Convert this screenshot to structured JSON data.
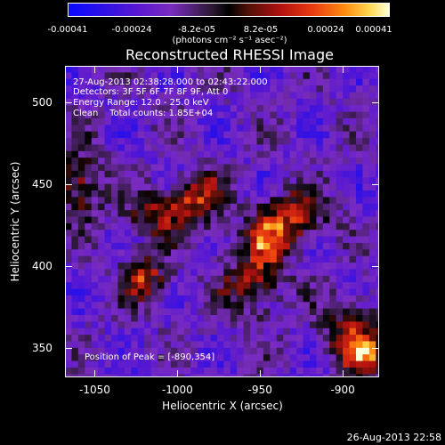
{
  "colorbar": {
    "tick_labels": [
      "-0.00041",
      "-0.00024",
      "-8.2e-05",
      "8.2e-05",
      "0.00024",
      "0.00041"
    ],
    "unit_label": "(photons cm⁻² s⁻¹ asec⁻²)",
    "colors": [
      "#0a0aff",
      "#7a2cc0",
      "#000000",
      "#b01010",
      "#ff8a10",
      "#ffffd8"
    ]
  },
  "chart_data": {
    "type": "heatmap",
    "title": "Reconstructed RHESSI Image",
    "xlabel": "Heliocentric X (arcsec)",
    "ylabel": "Heliocentric Y (arcsec)",
    "xlim": [
      -1068,
      -878
    ],
    "ylim": [
      332,
      522
    ],
    "x_ticks": [
      "-1050",
      "-1000",
      "-950",
      "-900"
    ],
    "x_tick_values": [
      -1050,
      -1000,
      -950,
      -900
    ],
    "y_ticks": [
      "350",
      "400",
      "450",
      "500"
    ],
    "y_tick_values": [
      350,
      400,
      450,
      500
    ],
    "vmin": -0.00041,
    "vmax": 0.00041,
    "bright_regions": [
      {
        "x": -1060,
        "y": 450,
        "sx": 10,
        "sy": 16,
        "amp": 0.00026
      },
      {
        "x": -1005,
        "y": 432,
        "sx": 16,
        "sy": 10,
        "amp": 0.0003
      },
      {
        "x": -985,
        "y": 445,
        "sx": 10,
        "sy": 9,
        "amp": 0.00022
      },
      {
        "x": -1020,
        "y": 392,
        "sx": 10,
        "sy": 10,
        "amp": 0.0003
      },
      {
        "x": -930,
        "y": 430,
        "sx": 14,
        "sy": 10,
        "amp": 0.00034
      },
      {
        "x": -945,
        "y": 415,
        "sx": 10,
        "sy": 10,
        "amp": 0.00028
      },
      {
        "x": -955,
        "y": 390,
        "sx": 14,
        "sy": 16,
        "amp": 0.00024
      },
      {
        "x": -895,
        "y": 362,
        "sx": 12,
        "sy": 12,
        "amp": 0.00028
      },
      {
        "x": -888,
        "y": 345,
        "sx": 8,
        "sy": 8,
        "amp": 0.00041
      }
    ],
    "annotations": {
      "time_range": "27-Aug-2013 02:38:28.000 to 02:43:22.000",
      "detectors": "Detectors: 3F 5F 6F 7F 8F 9F, Att 0",
      "energy_range": "Energy Range: 12.0 - 25.0 keV",
      "clean": "Clean    Total counts: 1.85E+04",
      "peak": "Position of Peak = [-890,354]"
    }
  },
  "footer": {
    "date": "26-Aug-2013 22:58"
  }
}
